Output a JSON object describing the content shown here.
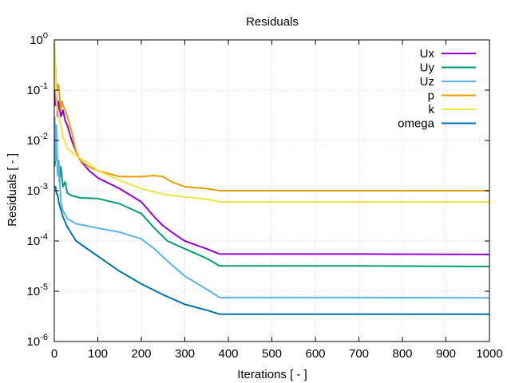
{
  "chart_data": {
    "type": "line",
    "title": "Residuals",
    "xlabel": "Iterations [ - ]",
    "ylabel": "Residuals [ - ]",
    "xlim": [
      0,
      1000
    ],
    "ylim": [
      1e-06,
      1
    ],
    "yscale": "log",
    "grid": true,
    "legend_position": "top-right",
    "xticks": [
      0,
      100,
      200,
      300,
      400,
      500,
      600,
      700,
      800,
      900,
      1000
    ],
    "yticks": [
      {
        "value": 1e-06,
        "base": "10",
        "exp": "-6"
      },
      {
        "value": 1e-05,
        "base": "10",
        "exp": "-5"
      },
      {
        "value": 0.0001,
        "base": "10",
        "exp": "-4"
      },
      {
        "value": 0.001,
        "base": "10",
        "exp": "-3"
      },
      {
        "value": 0.01,
        "base": "10",
        "exp": "-2"
      },
      {
        "value": 0.1,
        "base": "10",
        "exp": "-1"
      },
      {
        "value": 1,
        "base": "10",
        "exp": "0"
      }
    ],
    "series": [
      {
        "name": "Ux",
        "color": "#9400d3",
        "x": [
          1,
          3,
          5,
          8,
          10,
          15,
          20,
          25,
          30,
          40,
          50,
          60,
          80,
          100,
          150,
          200,
          230,
          250,
          280,
          300,
          350,
          380,
          500,
          700,
          1000
        ],
        "y": [
          0.1,
          0.05,
          0.08,
          0.03,
          0.06,
          0.03,
          0.04,
          0.025,
          0.02,
          0.01,
          0.006,
          0.004,
          0.0025,
          0.0018,
          0.0011,
          0.0006,
          0.0003,
          0.0002,
          0.00013,
          0.0001,
          7e-05,
          5.5e-05,
          5.5e-05,
          5.5e-05,
          5.4e-05
        ]
      },
      {
        "name": "Uy",
        "color": "#009e73",
        "x": [
          1,
          5,
          8,
          10,
          12,
          15,
          20,
          25,
          30,
          40,
          60,
          100,
          150,
          200,
          230,
          260,
          300,
          350,
          380,
          500,
          700,
          1000
        ],
        "y": [
          0.003,
          0.01,
          0.002,
          0.004,
          0.0015,
          0.003,
          0.0012,
          0.0015,
          0.0009,
          0.0008,
          0.00072,
          0.0007,
          0.00055,
          0.00035,
          0.00018,
          0.0001,
          7e-05,
          4.5e-05,
          3.2e-05,
          3.2e-05,
          3.2e-05,
          3.1e-05
        ]
      },
      {
        "name": "Uz",
        "color": "#56b4e9",
        "x": [
          1,
          3,
          5,
          8,
          10,
          15,
          20,
          30,
          50,
          100,
          150,
          200,
          230,
          260,
          300,
          350,
          380,
          500,
          700,
          1000
        ],
        "y": [
          0.03,
          0.004,
          0.02,
          0.002,
          0.004,
          0.0006,
          0.0004,
          0.00028,
          0.00022,
          0.00018,
          0.00015,
          0.00011,
          7e-05,
          4e-05,
          2e-05,
          1.1e-05,
          7.5e-06,
          7.5e-06,
          7.5e-06,
          7.4e-06
        ]
      },
      {
        "name": "p",
        "color": "#e69f00",
        "x": [
          1,
          3,
          5,
          8,
          10,
          15,
          18,
          20,
          25,
          30,
          40,
          50,
          60,
          80,
          100,
          150,
          200,
          230,
          250,
          270,
          300,
          350,
          380,
          500,
          700,
          1000
        ],
        "y": [
          0.4,
          0.3,
          0.1,
          0.13,
          0.12,
          0.04,
          0.06,
          0.05,
          0.04,
          0.03,
          0.015,
          0.006,
          0.004,
          0.003,
          0.0025,
          0.0019,
          0.0019,
          0.002,
          0.0019,
          0.0015,
          0.0012,
          0.0011,
          0.001,
          0.001,
          0.001,
          0.001
        ]
      },
      {
        "name": "k",
        "color": "#f0e442",
        "x": [
          1,
          3,
          5,
          10,
          15,
          20,
          30,
          50,
          80,
          100,
          150,
          200,
          250,
          300,
          350,
          380,
          500,
          700,
          1000
        ],
        "y": [
          0.9,
          0.2,
          0.06,
          0.03,
          0.02,
          0.012,
          0.007,
          0.005,
          0.0035,
          0.0025,
          0.0016,
          0.0011,
          0.00085,
          0.00075,
          0.00068,
          0.0006,
          0.0006,
          0.0006,
          0.0006
        ]
      },
      {
        "name": "omega",
        "color": "#0072b2",
        "x": [
          1,
          3,
          5,
          8,
          10,
          20,
          30,
          50,
          100,
          150,
          200,
          250,
          300,
          350,
          380,
          500,
          700,
          1000
        ],
        "y": [
          0.0012,
          0.0012,
          0.0009,
          0.0008,
          0.0006,
          0.0003,
          0.00019,
          0.0001,
          5e-05,
          2.5e-05,
          1.4e-05,
          8.5e-06,
          5.5e-06,
          4.2e-06,
          3.5e-06,
          3.5e-06,
          3.5e-06,
          3.5e-06
        ]
      }
    ]
  }
}
